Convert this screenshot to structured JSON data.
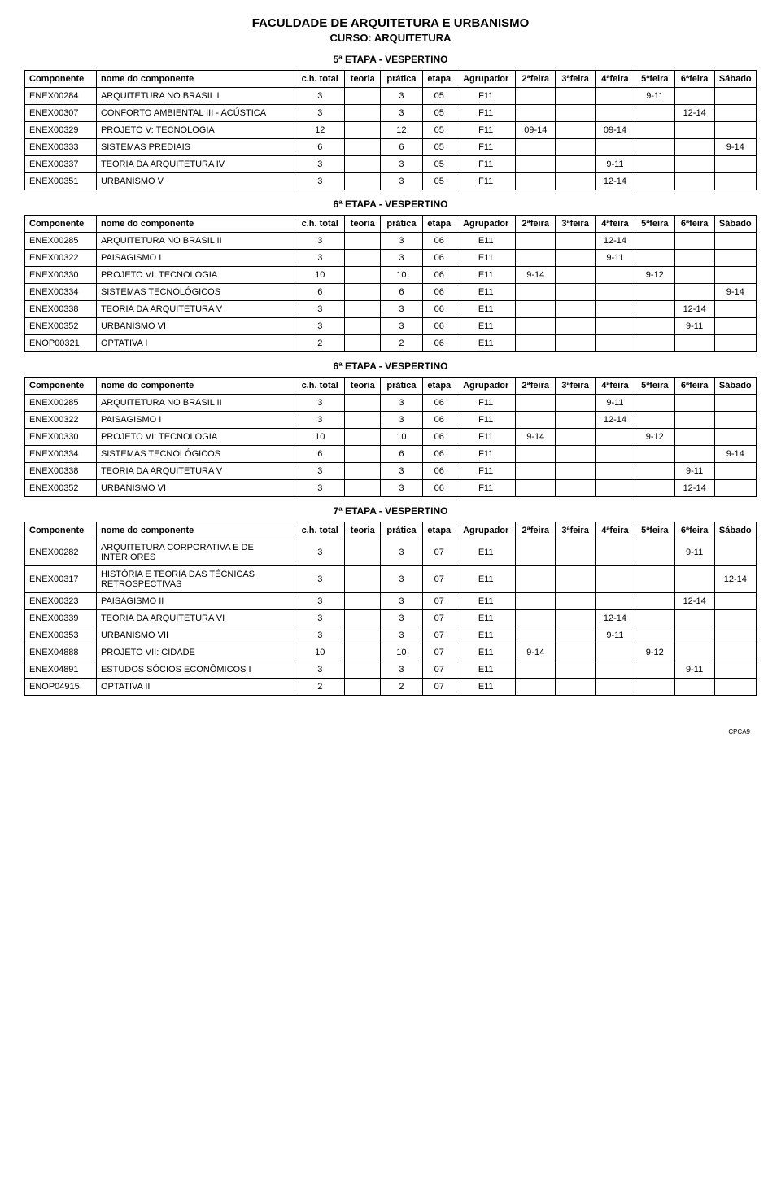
{
  "header": {
    "title": "FACULDADE DE ARQUITETURA E URBANISMO",
    "subtitle": "CURSO: ARQUITETURA"
  },
  "columns": [
    "Componente",
    "nome do componente",
    "c.h. total",
    "teoria",
    "prática",
    "etapa",
    "Agrupador",
    "2ªfeira",
    "3ªfeira",
    "4ªfeira",
    "5ªfeira",
    "6ªfeira",
    "Sábado"
  ],
  "sections": [
    {
      "title": "5ª ETAPA - VESPERTINO",
      "rows": [
        [
          "ENEX00284",
          "ARQUITETURA NO BRASIL I",
          "3",
          "",
          "3",
          "05",
          "F11",
          "",
          "",
          "",
          "9-11",
          "",
          ""
        ],
        [
          "ENEX00307",
          "CONFORTO AMBIENTAL III - ACÚSTICA",
          "3",
          "",
          "3",
          "05",
          "F11",
          "",
          "",
          "",
          "",
          "12-14",
          ""
        ],
        [
          "ENEX00329",
          "PROJETO V: TECNOLOGIA",
          "12",
          "",
          "12",
          "05",
          "F11",
          "09-14",
          "",
          "09-14",
          "",
          "",
          ""
        ],
        [
          "ENEX00333",
          "SISTEMAS PREDIAIS",
          "6",
          "",
          "6",
          "05",
          "F11",
          "",
          "",
          "",
          "",
          "",
          "9-14"
        ],
        [
          "ENEX00337",
          "TEORIA DA ARQUITETURA IV",
          "3",
          "",
          "3",
          "05",
          "F11",
          "",
          "",
          "9-11",
          "",
          "",
          ""
        ],
        [
          "ENEX00351",
          "URBANISMO V",
          "3",
          "",
          "3",
          "05",
          "F11",
          "",
          "",
          "12-14",
          "",
          "",
          ""
        ]
      ]
    },
    {
      "title": "6ª ETAPA - VESPERTINO",
      "rows": [
        [
          "ENEX00285",
          "ARQUITETURA NO BRASIL II",
          "3",
          "",
          "3",
          "06",
          "E11",
          "",
          "",
          "12-14",
          "",
          "",
          ""
        ],
        [
          "ENEX00322",
          "PAISAGISMO I",
          "3",
          "",
          "3",
          "06",
          "E11",
          "",
          "",
          "9-11",
          "",
          "",
          ""
        ],
        [
          "ENEX00330",
          "PROJETO VI: TECNOLOGIA",
          "10",
          "",
          "10",
          "06",
          "E11",
          "9-14",
          "",
          "",
          "9-12",
          "",
          ""
        ],
        [
          "ENEX00334",
          "SISTEMAS TECNOLÓGICOS",
          "6",
          "",
          "6",
          "06",
          "E11",
          "",
          "",
          "",
          "",
          "",
          "9-14"
        ],
        [
          "ENEX00338",
          "TEORIA DA ARQUITETURA V",
          "3",
          "",
          "3",
          "06",
          "E11",
          "",
          "",
          "",
          "",
          "12-14",
          ""
        ],
        [
          "ENEX00352",
          "URBANISMO VI",
          "3",
          "",
          "3",
          "06",
          "E11",
          "",
          "",
          "",
          "",
          "9-11",
          ""
        ],
        [
          "ENOP00321",
          "OPTATIVA I",
          "2",
          "",
          "2",
          "06",
          "E11",
          "",
          "",
          "",
          "",
          "",
          ""
        ]
      ]
    },
    {
      "title": "6ª ETAPA - VESPERTINO",
      "rows": [
        [
          "ENEX00285",
          "ARQUITETURA NO BRASIL II",
          "3",
          "",
          "3",
          "06",
          "F11",
          "",
          "",
          "9-11",
          "",
          "",
          ""
        ],
        [
          "ENEX00322",
          "PAISAGISMO I",
          "3",
          "",
          "3",
          "06",
          "F11",
          "",
          "",
          "12-14",
          "",
          "",
          ""
        ],
        [
          "ENEX00330",
          "PROJETO VI: TECNOLOGIA",
          "10",
          "",
          "10",
          "06",
          "F11",
          "9-14",
          "",
          "",
          "9-12",
          "",
          ""
        ],
        [
          "ENEX00334",
          "SISTEMAS TECNOLÓGICOS",
          "6",
          "",
          "6",
          "06",
          "F11",
          "",
          "",
          "",
          "",
          "",
          "9-14"
        ],
        [
          "ENEX00338",
          "TEORIA DA ARQUITETURA V",
          "3",
          "",
          "3",
          "06",
          "F11",
          "",
          "",
          "",
          "",
          "9-11",
          ""
        ],
        [
          "ENEX00352",
          "URBANISMO VI",
          "3",
          "",
          "3",
          "06",
          "F11",
          "",
          "",
          "",
          "",
          "12-14",
          ""
        ]
      ]
    },
    {
      "title": "7ª ETAPA - VESPERTINO",
      "rows": [
        [
          "ENEX00282",
          "ARQUITETURA CORPORATIVA E DE INTERIORES",
          "3",
          "",
          "3",
          "07",
          "E11",
          "",
          "",
          "",
          "",
          "9-11",
          ""
        ],
        [
          "ENEX00317",
          "HISTÓRIA E TEORIA DAS TÉCNICAS RETROSPECTIVAS",
          "3",
          "",
          "3",
          "07",
          "E11",
          "",
          "",
          "",
          "",
          "",
          "12-14"
        ],
        [
          "ENEX00323",
          "PAISAGISMO II",
          "3",
          "",
          "3",
          "07",
          "E11",
          "",
          "",
          "",
          "",
          "12-14",
          ""
        ],
        [
          "ENEX00339",
          "TEORIA DA ARQUITETURA VI",
          "3",
          "",
          "3",
          "07",
          "E11",
          "",
          "",
          "12-14",
          "",
          "",
          ""
        ],
        [
          "ENEX00353",
          "URBANISMO VII",
          "3",
          "",
          "3",
          "07",
          "E11",
          "",
          "",
          "9-11",
          "",
          "",
          ""
        ],
        [
          "ENEX04888",
          "PROJETO VII: CIDADE",
          "10",
          "",
          "10",
          "07",
          "E11",
          "9-14",
          "",
          "",
          "9-12",
          "",
          ""
        ],
        [
          "ENEX04891",
          "ESTUDOS SÓCIOS ECONÔMICOS I",
          "3",
          "",
          "3",
          "07",
          "E11",
          "",
          "",
          "",
          "",
          "9-11",
          ""
        ],
        [
          "ENOP04915",
          "OPTATIVA II",
          "2",
          "",
          "2",
          "07",
          "E11",
          "",
          "",
          "",
          "",
          "",
          ""
        ]
      ]
    }
  ],
  "footer": "CPCA9"
}
